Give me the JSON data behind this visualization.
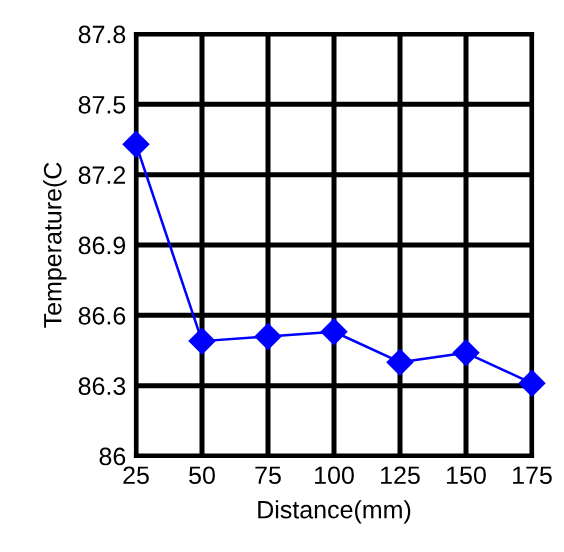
{
  "chart_data": {
    "type": "line",
    "xlabel": "Distance(mm)",
    "ylabel": "Temperature(C",
    "x": [
      25,
      50,
      75,
      100,
      125,
      150,
      175
    ],
    "series": [
      {
        "color": "#0000ff",
        "values": [
          87.33,
          86.49,
          86.51,
          86.53,
          86.4,
          86.44,
          86.31
        ]
      }
    ],
    "xlim": [
      25,
      175
    ],
    "xticks": [
      25,
      50,
      75,
      100,
      125,
      150,
      175
    ],
    "ylim": [
      86,
      87.8
    ],
    "yticks": [
      86,
      86.3,
      86.6,
      86.9,
      87.2,
      87.5,
      87.8
    ],
    "grid": true,
    "marker": "diamond",
    "line_style": "solid",
    "legend": false
  }
}
